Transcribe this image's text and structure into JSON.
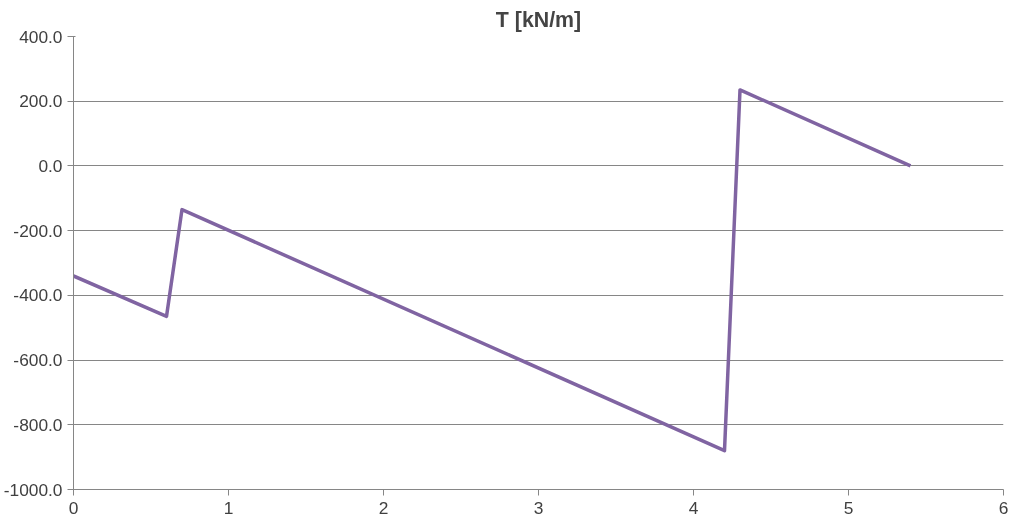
{
  "chart_data": {
    "type": "line",
    "title": "T [kN/m]",
    "x": [
      0,
      0.6,
      0.7,
      4.2,
      4.3,
      5.4
    ],
    "series": [
      {
        "color": "#8064a2",
        "values": [
          -340,
          -465,
          -135,
          -880,
          235,
          0
        ]
      }
    ],
    "xlim": [
      0,
      6
    ],
    "xticks": [
      0,
      1,
      2,
      3,
      4,
      5,
      6
    ],
    "ylim": [
      -1000,
      400
    ],
    "yticks": [
      {
        "value": 400,
        "label": "400.0"
      },
      {
        "value": 200,
        "label": "200.0"
      },
      {
        "value": 0,
        "label": "0.0"
      },
      {
        "value": -200,
        "label": "-200.0"
      },
      {
        "value": -400,
        "label": "-400.0"
      },
      {
        "value": -600,
        "label": "-600.0"
      },
      {
        "value": -800,
        "label": "-800.0"
      },
      {
        "value": -1000,
        "label": "-1000.0"
      }
    ],
    "grid": "y",
    "marker": "none",
    "line_style": "solid"
  }
}
